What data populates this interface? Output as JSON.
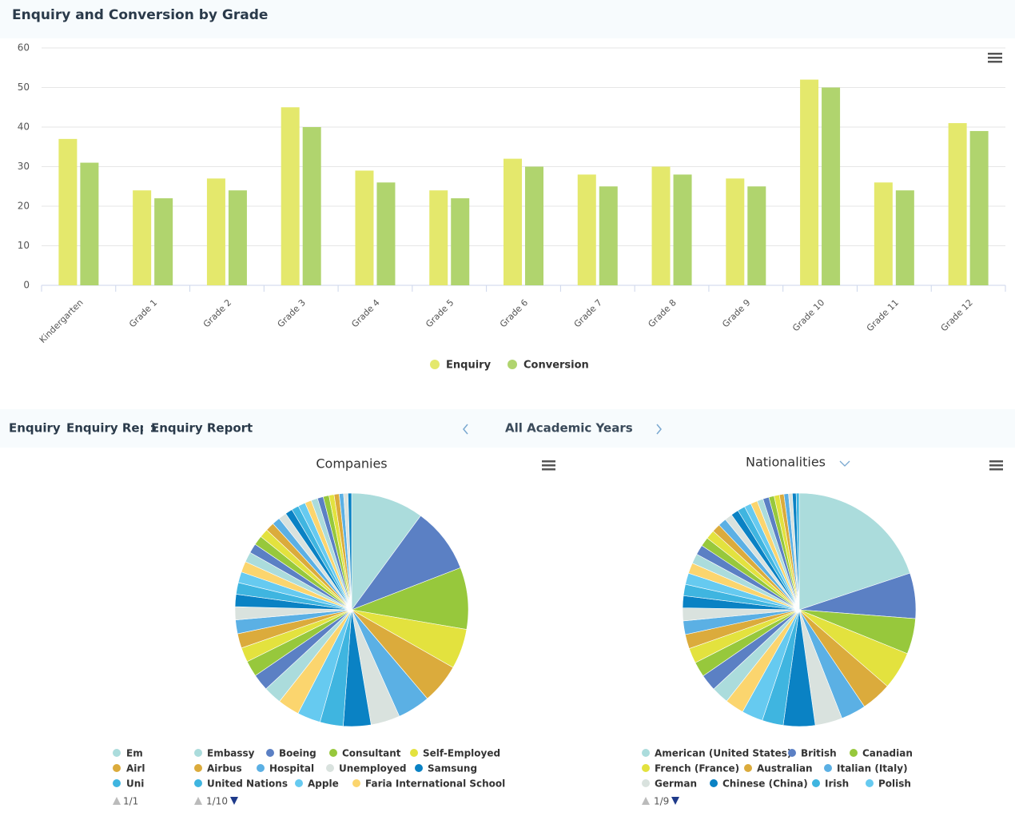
{
  "page": {
    "tabs": [
      "Enquiry",
      "Enquiry Repo",
      "Enquiry Report"
    ],
    "period": "All Academic Years"
  },
  "chart_data": [
    {
      "type": "bar",
      "title": "Enquiry and Conversion by Grade",
      "categories": [
        "Kindergarten",
        "Grade 1",
        "Grade 2",
        "Grade 3",
        "Grade 4",
        "Grade 5",
        "Grade 6",
        "Grade 7",
        "Grade 8",
        "Grade 9",
        "Grade 10",
        "Grade 11",
        "Grade 12"
      ],
      "series": [
        {
          "name": "Enquiry",
          "color": "#e4e86c",
          "values": [
            37,
            24,
            27,
            45,
            29,
            24,
            32,
            28,
            30,
            27,
            52,
            26,
            41
          ]
        },
        {
          "name": "Conversion",
          "color": "#b0d46e",
          "values": [
            31,
            22,
            24,
            40,
            26,
            22,
            30,
            25,
            28,
            25,
            50,
            24,
            39
          ]
        }
      ],
      "ylim": [
        0,
        60
      ],
      "yticks": [
        0,
        10,
        20,
        30,
        40,
        50,
        60
      ],
      "grid": true,
      "legend": "bottom"
    },
    {
      "type": "pie",
      "title": "Companies",
      "categories": [
        "Embassy",
        "Boeing",
        "Consultant",
        "Self-Employed",
        "Airbus",
        "Hospital",
        "Unemployed",
        "Samsung",
        "United Nations",
        "Apple",
        "Faria International School",
        null,
        null,
        null,
        null,
        null,
        null,
        null,
        null,
        null,
        null,
        null,
        null,
        null,
        null,
        null,
        null,
        null,
        null,
        null,
        null,
        null,
        null,
        null,
        null,
        null,
        null,
        null,
        null,
        null,
        null
      ],
      "values": [
        10,
        9,
        8.5,
        5.5,
        5.5,
        4.5,
        4,
        3.8,
        3.2,
        3.2,
        3,
        2.5,
        2.3,
        2.2,
        2,
        2,
        1.9,
        1.8,
        1.7,
        1.6,
        1.5,
        1.5,
        1.4,
        1.3,
        1.3,
        1.2,
        1.2,
        1.1,
        1.1,
        1,
        1,
        1,
        0.9,
        0.9,
        0.8,
        0.8,
        0.7,
        0.7,
        0.6,
        0.6,
        0.5
      ],
      "colors": [
        "#abdcdc",
        "#5b80c4",
        "#97c83c",
        "#e3e23e",
        "#dbab3c",
        "#5bb0e4",
        "#d9e2de",
        "#0a82c4",
        "#3fb5e0",
        "#66caf0",
        "#fbd56e"
      ],
      "legend_page": "1/10"
    },
    {
      "type": "pie",
      "title": "Nationalities",
      "categories": [
        "American (United States)",
        "British",
        "Canadian",
        "French (France)",
        "Australian",
        "Italian (Italy)",
        "German",
        "Chinese (China)",
        "Irish",
        "Polish",
        null,
        null,
        null,
        null,
        null,
        null,
        null,
        null,
        null,
        null,
        null,
        null,
        null,
        null,
        null,
        null,
        null,
        null,
        null,
        null,
        null,
        null,
        null,
        null,
        null,
        null,
        null,
        null,
        null,
        null,
        null,
        null
      ],
      "values": [
        19,
        6,
        4.7,
        5,
        4,
        3.3,
        3.6,
        4.2,
        2.8,
        2.8,
        2.5,
        2.3,
        2.2,
        2,
        2,
        1.9,
        1.8,
        1.7,
        1.6,
        1.5,
        1.5,
        1.4,
        1.3,
        1.3,
        1.2,
        1.2,
        1.1,
        1.1,
        1,
        1,
        1,
        0.9,
        0.9,
        0.8,
        0.8,
        0.7,
        0.7,
        0.6,
        0.6,
        0.5,
        0.5,
        0.4
      ],
      "colors": [
        "#abdcdc",
        "#5b80c4",
        "#97c83c",
        "#e3e23e",
        "#dbab3c",
        "#5bb0e4",
        "#d9e2de",
        "#0a82c4",
        "#3fb5e0",
        "#66caf0",
        "#fbd56e"
      ],
      "legend_page": "1/9"
    }
  ],
  "partial_legend": {
    "items": [
      "Em",
      "Airl",
      "Uni"
    ],
    "page": "1/1"
  }
}
